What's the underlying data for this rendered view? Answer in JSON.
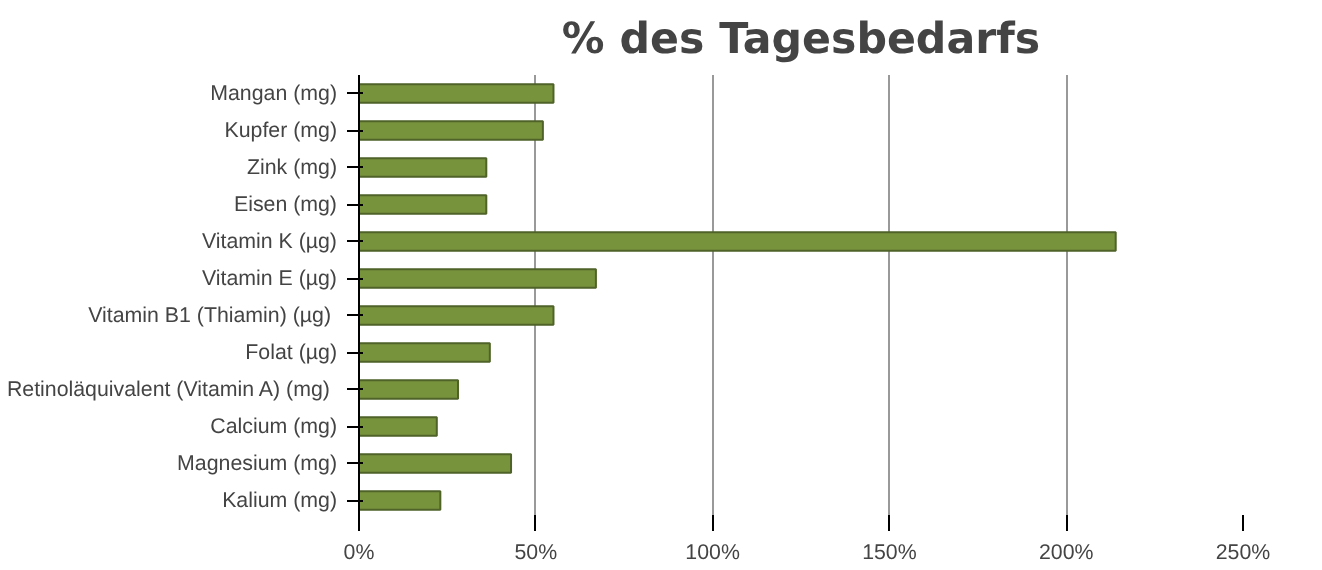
{
  "chart_data": {
    "type": "bar",
    "orientation": "horizontal",
    "title": "% des Tagesbedarfs",
    "categories": [
      "Mangan (mg)",
      "Kupfer (mg)",
      "Zink (mg)",
      "Eisen (mg)",
      "Vitamin K (µg)",
      "Vitamin E (µg)",
      "Vitamin B1 (Thiamin)  (µg)",
      "Folat (µg)",
      "Retinoläquivalent (Vitamin  A) (mg)",
      "Calcium (mg)",
      "Magnesium (mg)",
      "Kalium (mg)"
    ],
    "values": [
      55,
      52,
      36,
      36,
      214,
      67,
      55,
      37,
      28,
      22,
      43,
      23
    ],
    "color": "#77933c",
    "xlim": [
      0,
      250
    ],
    "xticks": [
      {
        "value": 0,
        "label": "0%"
      },
      {
        "value": 50,
        "label": "50%"
      },
      {
        "value": 100,
        "label": "100%"
      },
      {
        "value": 150,
        "label": "150%"
      },
      {
        "value": 200,
        "label": "200%"
      },
      {
        "value": 250,
        "label": "250%"
      }
    ],
    "grid": "x"
  }
}
